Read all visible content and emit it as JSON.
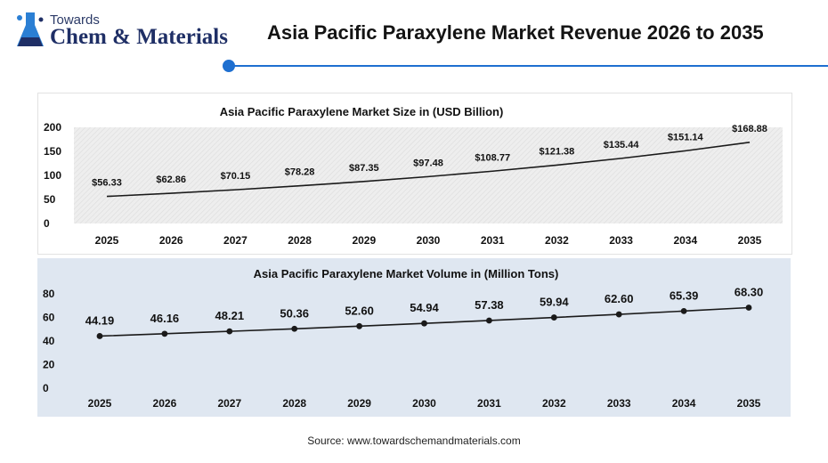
{
  "logo": {
    "small_text": "Towards",
    "big_text": "Chem & Materials",
    "icon": "flask-icon"
  },
  "page_title": "Asia Pacific Paraxylene Market Revenue 2026 to 2035",
  "source": "Source: www.towardschemandmaterials.com",
  "colors": {
    "accent": "#1e6fd0",
    "line": "#1a1a1a",
    "volume_panel_bg": "#dfe7f1",
    "size_plot_bg": "#eeeeee"
  },
  "chart_data": [
    {
      "type": "line",
      "title": "Asia Pacific Paraxylene Market Size in (USD Billion)",
      "x": [
        "2025",
        "2026",
        "2027",
        "2028",
        "2029",
        "2030",
        "2031",
        "2032",
        "2033",
        "2034",
        "2035"
      ],
      "values": [
        56.33,
        62.86,
        70.15,
        78.28,
        87.35,
        97.48,
        108.77,
        121.38,
        135.44,
        151.14,
        168.88
      ],
      "data_labels": [
        "$56.33",
        "$62.86",
        "$70.15",
        "$78.28",
        "$87.35",
        "$97.48",
        "$108.77",
        "$121.38",
        "$135.44",
        "$151.14",
        "$168.88"
      ],
      "yticks": [
        "0",
        "50",
        "100",
        "150",
        "200"
      ],
      "ylim": [
        0,
        200
      ],
      "markers": false,
      "grid": "hatched plot background",
      "xlabel": "",
      "ylabel": ""
    },
    {
      "type": "line",
      "title": "Asia Pacific Paraxylene Market Volume in (Million Tons)",
      "x": [
        "2025",
        "2026",
        "2027",
        "2028",
        "2029",
        "2030",
        "2031",
        "2032",
        "2033",
        "2034",
        "2035"
      ],
      "values": [
        44.19,
        46.16,
        48.21,
        50.36,
        52.6,
        54.94,
        57.38,
        59.94,
        62.6,
        65.39,
        68.3
      ],
      "data_labels": [
        "44.19",
        "46.16",
        "48.21",
        "50.36",
        "52.60",
        "54.94",
        "57.38",
        "59.94",
        "62.60",
        "65.39",
        "68.30"
      ],
      "yticks": [
        "0",
        "20",
        "40",
        "60",
        "80"
      ],
      "ylim": [
        0,
        80
      ],
      "markers": true,
      "grid": false,
      "xlabel": "",
      "ylabel": ""
    }
  ]
}
